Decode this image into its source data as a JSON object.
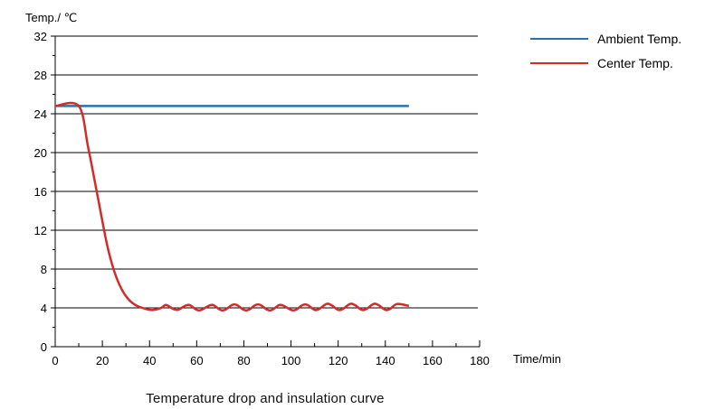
{
  "chart_data": {
    "type": "line",
    "title": "Temperature drop and insulation curve",
    "xlabel": "Time/min",
    "ylabel": "Temp./ ℃",
    "xlim": [
      0,
      180
    ],
    "ylim": [
      0,
      32
    ],
    "x_ticks": [
      "0",
      "20",
      "40",
      "60",
      "80",
      "100",
      "120",
      "140",
      "160",
      "180"
    ],
    "y_ticks": [
      "0",
      "4",
      "8",
      "12",
      "16",
      "20",
      "24",
      "28",
      "32"
    ],
    "grid": "horizontal",
    "legend_position": "top-right",
    "series": [
      {
        "name": "Ambient Temp.",
        "color": "#2f6fa8",
        "x": [
          0,
          150
        ],
        "y": [
          24.8,
          24.8
        ]
      },
      {
        "name": "Center Temp.",
        "color": "#d42a2a",
        "x": [
          0,
          10,
          14,
          18,
          22,
          25,
          28,
          31,
          34,
          37,
          40,
          42,
          45,
          47,
          50,
          52,
          55,
          57,
          60,
          62,
          65,
          67,
          70,
          72,
          75,
          77,
          80,
          82,
          85,
          87,
          90,
          92,
          95,
          97,
          100,
          102,
          105,
          107,
          110,
          112,
          115,
          117,
          120,
          122,
          125,
          127,
          130,
          132,
          135,
          137,
          140,
          142,
          145,
          150
        ],
        "y": [
          24.8,
          24.8,
          20.5,
          15.5,
          10.5,
          7.8,
          6.0,
          4.9,
          4.3,
          4.0,
          3.8,
          3.8,
          4.0,
          4.3,
          3.9,
          3.8,
          4.2,
          4.3,
          3.8,
          3.8,
          4.2,
          4.3,
          3.8,
          3.8,
          4.3,
          4.3,
          3.8,
          3.8,
          4.3,
          4.3,
          3.8,
          3.8,
          4.3,
          4.2,
          3.8,
          3.8,
          4.3,
          4.3,
          3.8,
          3.9,
          4.4,
          4.3,
          3.8,
          3.9,
          4.4,
          4.3,
          3.8,
          3.9,
          4.4,
          4.3,
          3.8,
          3.9,
          4.4,
          4.2
        ]
      }
    ]
  }
}
